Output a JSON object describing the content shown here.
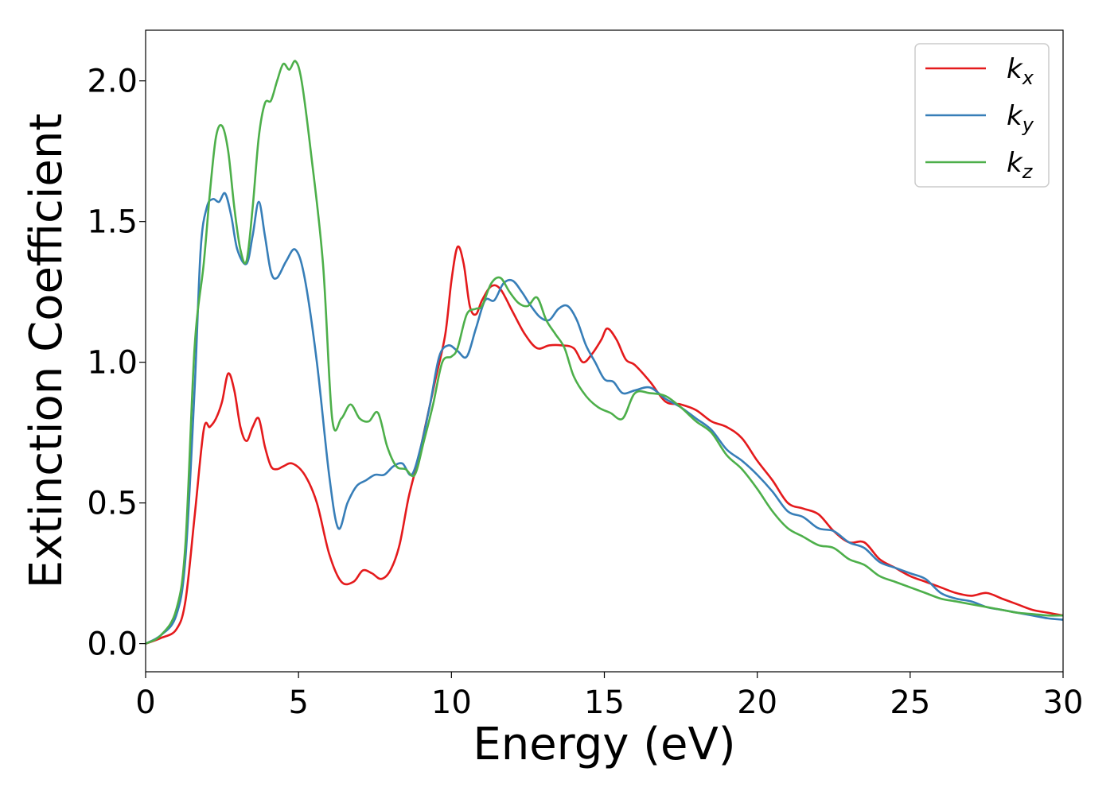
{
  "chart_data": {
    "type": "line",
    "xlabel": "Energy (eV)",
    "ylabel": "Extinction Coefficient",
    "xlim": [
      0,
      30
    ],
    "ylim": [
      -0.1,
      2.18
    ],
    "xticks": [
      0,
      5,
      10,
      15,
      20,
      25,
      30
    ],
    "xtick_labels": [
      "0",
      "5",
      "10",
      "15",
      "20",
      "25",
      "30"
    ],
    "yticks": [
      0.0,
      0.5,
      1.0,
      1.5,
      2.0
    ],
    "ytick_labels": [
      "0.0",
      "0.5",
      "1.0",
      "1.5",
      "2.0"
    ],
    "grid": false,
    "legend_position": "top-right",
    "series": [
      {
        "name": "k_x",
        "legend_main": "k",
        "legend_sub": "x",
        "color": "#e41a1c",
        "x": [
          0,
          0.5,
          1,
          1.3,
          1.6,
          1.9,
          2.1,
          2.3,
          2.5,
          2.7,
          2.9,
          3.1,
          3.3,
          3.5,
          3.7,
          3.9,
          4.1,
          4.3,
          4.5,
          4.8,
          5.2,
          5.6,
          6.0,
          6.4,
          6.8,
          7.1,
          7.4,
          7.7,
          8.0,
          8.3,
          8.6,
          8.9,
          9.2,
          9.5,
          9.8,
          10.0,
          10.2,
          10.4,
          10.6,
          10.8,
          11.0,
          11.3,
          11.6,
          12.0,
          12.4,
          12.8,
          13.2,
          13.6,
          14.0,
          14.3,
          14.6,
          14.9,
          15.1,
          15.4,
          15.7,
          16.0,
          16.5,
          17.0,
          17.5,
          18.0,
          18.5,
          19.0,
          19.5,
          20.0,
          20.5,
          21.0,
          21.5,
          22.0,
          22.5,
          23.0,
          23.5,
          24.0,
          24.5,
          25.0,
          25.5,
          26.0,
          26.5,
          27.0,
          27.5,
          28.0,
          28.5,
          29.0,
          29.5,
          30.0
        ],
        "y": [
          0.0,
          0.02,
          0.05,
          0.15,
          0.45,
          0.76,
          0.77,
          0.8,
          0.86,
          0.96,
          0.9,
          0.77,
          0.72,
          0.77,
          0.8,
          0.7,
          0.63,
          0.62,
          0.63,
          0.64,
          0.6,
          0.5,
          0.32,
          0.22,
          0.22,
          0.26,
          0.25,
          0.23,
          0.26,
          0.35,
          0.52,
          0.65,
          0.8,
          0.95,
          1.1,
          1.29,
          1.41,
          1.35,
          1.2,
          1.17,
          1.22,
          1.27,
          1.26,
          1.18,
          1.1,
          1.05,
          1.06,
          1.06,
          1.05,
          1.0,
          1.03,
          1.08,
          1.12,
          1.08,
          1.01,
          0.99,
          0.93,
          0.86,
          0.85,
          0.83,
          0.79,
          0.77,
          0.73,
          0.65,
          0.58,
          0.5,
          0.48,
          0.46,
          0.4,
          0.36,
          0.36,
          0.3,
          0.27,
          0.24,
          0.22,
          0.2,
          0.18,
          0.17,
          0.18,
          0.16,
          0.14,
          0.12,
          0.11,
          0.1
        ]
      },
      {
        "name": "k_y",
        "legend_main": "k",
        "legend_sub": "y",
        "color": "#377eb8",
        "x": [
          0,
          0.5,
          1,
          1.3,
          1.6,
          1.8,
          2.0,
          2.2,
          2.4,
          2.6,
          2.8,
          3.0,
          3.3,
          3.5,
          3.7,
          3.9,
          4.1,
          4.3,
          4.6,
          4.9,
          5.2,
          5.6,
          6.0,
          6.3,
          6.6,
          6.9,
          7.2,
          7.5,
          7.8,
          8.1,
          8.4,
          8.7,
          9.0,
          9.3,
          9.6,
          9.9,
          10.2,
          10.5,
          10.8,
          11.1,
          11.4,
          11.7,
          12.0,
          12.3,
          12.6,
          12.9,
          13.2,
          13.5,
          13.8,
          14.1,
          14.4,
          14.7,
          15.0,
          15.3,
          15.6,
          16.0,
          16.5,
          17.0,
          17.5,
          18.0,
          18.5,
          19.0,
          19.5,
          20.0,
          20.5,
          21.0,
          21.5,
          22.0,
          22.5,
          23.0,
          23.5,
          24.0,
          24.5,
          25.0,
          25.5,
          26.0,
          26.5,
          27.0,
          27.5,
          28.0,
          28.5,
          29.0,
          29.5,
          30.0
        ],
        "y": [
          0.0,
          0.03,
          0.1,
          0.3,
          0.9,
          1.4,
          1.55,
          1.58,
          1.57,
          1.6,
          1.52,
          1.4,
          1.35,
          1.45,
          1.57,
          1.45,
          1.32,
          1.3,
          1.36,
          1.4,
          1.3,
          1.0,
          0.6,
          0.41,
          0.5,
          0.56,
          0.58,
          0.6,
          0.6,
          0.63,
          0.64,
          0.6,
          0.7,
          0.85,
          1.02,
          1.06,
          1.04,
          1.02,
          1.12,
          1.22,
          1.22,
          1.28,
          1.29,
          1.25,
          1.2,
          1.16,
          1.15,
          1.19,
          1.2,
          1.15,
          1.06,
          1.0,
          0.94,
          0.93,
          0.89,
          0.9,
          0.91,
          0.87,
          0.84,
          0.8,
          0.76,
          0.69,
          0.65,
          0.6,
          0.54,
          0.47,
          0.45,
          0.41,
          0.4,
          0.36,
          0.34,
          0.29,
          0.27,
          0.25,
          0.23,
          0.18,
          0.16,
          0.15,
          0.13,
          0.12,
          0.11,
          0.1,
          0.09,
          0.085
        ]
      },
      {
        "name": "k_z",
        "legend_main": "k",
        "legend_sub": "z",
        "color": "#4daf4a",
        "x": [
          0,
          0.5,
          1,
          1.3,
          1.6,
          1.9,
          2.1,
          2.3,
          2.5,
          2.7,
          2.9,
          3.1,
          3.3,
          3.5,
          3.7,
          3.9,
          4.1,
          4.3,
          4.5,
          4.7,
          4.9,
          5.1,
          5.4,
          5.8,
          6.1,
          6.4,
          6.7,
          7.0,
          7.3,
          7.6,
          7.9,
          8.2,
          8.5,
          8.8,
          9.1,
          9.4,
          9.7,
          10.0,
          10.2,
          10.5,
          10.8,
          11.0,
          11.3,
          11.6,
          11.9,
          12.2,
          12.5,
          12.8,
          13.1,
          13.4,
          13.7,
          14.0,
          14.4,
          14.8,
          15.2,
          15.6,
          16.0,
          16.5,
          17.0,
          17.5,
          18.0,
          18.5,
          19.0,
          19.5,
          20.0,
          20.5,
          21.0,
          21.5,
          22.0,
          22.5,
          23.0,
          23.5,
          24.0,
          24.5,
          25.0,
          25.5,
          26.0,
          26.5,
          27.0,
          27.5,
          28.0,
          28.5,
          29.0,
          29.5,
          30.0
        ],
        "y": [
          0.0,
          0.03,
          0.12,
          0.35,
          1.05,
          1.35,
          1.6,
          1.8,
          1.84,
          1.75,
          1.55,
          1.4,
          1.36,
          1.55,
          1.8,
          1.92,
          1.93,
          2.0,
          2.06,
          2.04,
          2.07,
          2.0,
          1.75,
          1.35,
          0.8,
          0.8,
          0.85,
          0.8,
          0.79,
          0.82,
          0.7,
          0.63,
          0.62,
          0.6,
          0.72,
          0.85,
          1.0,
          1.02,
          1.05,
          1.17,
          1.19,
          1.2,
          1.28,
          1.3,
          1.25,
          1.21,
          1.2,
          1.23,
          1.15,
          1.1,
          1.05,
          0.95,
          0.88,
          0.84,
          0.82,
          0.8,
          0.89,
          0.89,
          0.88,
          0.84,
          0.79,
          0.75,
          0.67,
          0.62,
          0.55,
          0.47,
          0.41,
          0.38,
          0.35,
          0.34,
          0.3,
          0.28,
          0.24,
          0.22,
          0.2,
          0.18,
          0.16,
          0.15,
          0.14,
          0.13,
          0.12,
          0.11,
          0.105,
          0.1,
          0.1
        ]
      }
    ]
  }
}
